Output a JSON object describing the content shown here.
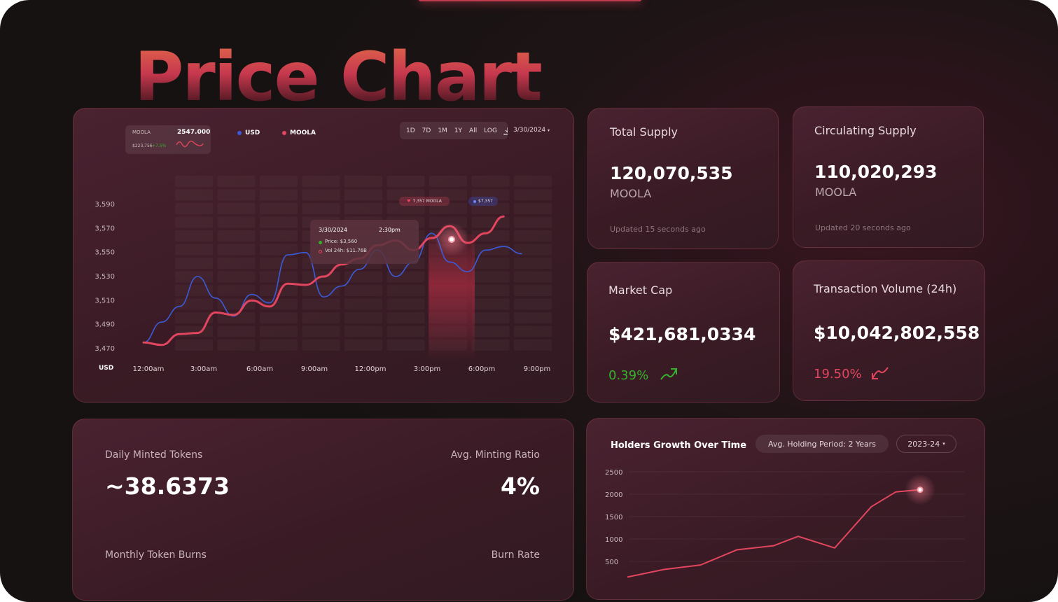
{
  "hero_title": "Price Chart",
  "price_chart": {
    "token_box": {
      "symbol": "MOOLA",
      "price": "2547.000",
      "sub_value": "$223,756",
      "change": "+7.5%"
    },
    "legend": [
      {
        "name": "USD",
        "color": "#3b5bd9"
      },
      {
        "name": "MOOLA",
        "color": "#e2455e"
      }
    ],
    "range_buttons": [
      "1D",
      "7D",
      "1M",
      "1Y",
      "All",
      "LOG"
    ],
    "download_icon": "download-icon",
    "date_select": "3/30/2024",
    "tooltip": {
      "date": "3/30/2024",
      "time": "2:30pm",
      "price": "Price: $3,560",
      "vol": "Vol 24h: $11.76B"
    },
    "tag_moola": "7,357 MOOLA",
    "tag_usd": "$7,357",
    "unit_label": "USD"
  },
  "chart_data": [
    {
      "type": "line",
      "ylim": [
        3460,
        3600
      ],
      "yticks": [
        3590,
        3570,
        3550,
        3530,
        3510,
        3490,
        3470
      ],
      "xticks": [
        "12:00am",
        "3:00am",
        "6:00am",
        "9:00am",
        "12:00pm",
        "3:00pm",
        "6:00pm",
        "9:00pm"
      ],
      "xrange": [
        0,
        21
      ],
      "series": [
        {
          "name": "USD",
          "color": "#3b5bd9",
          "x": [
            0,
            1,
            2,
            3,
            4,
            5,
            6,
            7,
            8,
            9,
            10,
            11,
            12,
            13,
            14,
            15,
            16,
            17,
            18,
            19,
            20,
            21
          ],
          "y": [
            3475,
            3492,
            3505,
            3530,
            3512,
            3497,
            3515,
            3508,
            3548,
            3550,
            3513,
            3522,
            3536,
            3552,
            3530,
            3542,
            3566,
            3542,
            3534,
            3552,
            3555,
            3549
          ]
        },
        {
          "name": "MOOLA",
          "color": "#e2455e",
          "x": [
            0,
            1,
            2,
            3,
            4,
            5,
            6,
            7,
            8,
            9,
            10,
            11,
            12,
            13,
            14,
            15,
            16,
            17,
            18,
            19,
            20
          ],
          "y": [
            3475,
            3473,
            3482,
            3483,
            3500,
            3498,
            3510,
            3505,
            3524,
            3523,
            3530,
            3540,
            3545,
            3556,
            3560,
            3552,
            3562,
            3572,
            3558,
            3566,
            3580
          ]
        }
      ]
    },
    {
      "type": "line",
      "title": "Holders Growth Over Time",
      "ylim": [
        0,
        2600
      ],
      "yticks": [
        2500,
        2000,
        1500,
        1000,
        500
      ],
      "xrange": [
        0,
        12
      ],
      "series": [
        {
          "name": "Holders",
          "color": "#e2455e",
          "x": [
            0,
            1.5,
            3,
            4.5,
            6,
            7,
            8.5,
            10,
            11,
            12
          ],
          "y": [
            150,
            320,
            420,
            760,
            850,
            1060,
            800,
            1720,
            2050,
            2100
          ]
        }
      ]
    }
  ],
  "stats": {
    "total_supply": {
      "label": "Total Supply",
      "value": "120,070,535",
      "unit": "MOOLA",
      "updated": "Updated 15 seconds ago"
    },
    "circulating_supply": {
      "label": "Circulating Supply",
      "value": "110,020,293",
      "unit": "MOOLA",
      "updated": "Updated 20 seconds ago"
    },
    "market_cap": {
      "label": "Market Cap",
      "value": "$421,681,0334",
      "change": "0.39%",
      "direction": "up",
      "color": "#37b12e"
    },
    "tx_volume": {
      "label": "Transaction Volume (24h)",
      "value": "$10,042,802,558",
      "change": "19.50%",
      "direction": "down",
      "color": "#e2455e"
    }
  },
  "minted": {
    "daily_label": "Daily Minted Tokens",
    "daily_value": "~38.6373",
    "ratio_label": "Avg. Minting Ratio",
    "ratio_value": "4%",
    "burns_label": "Monthly Token Burns",
    "burn_rate_label": "Burn Rate"
  },
  "holders": {
    "title": "Holders Growth Over Time",
    "holding_period": "Avg. Holding Period: 2 Years",
    "year_select": "2023-24"
  }
}
